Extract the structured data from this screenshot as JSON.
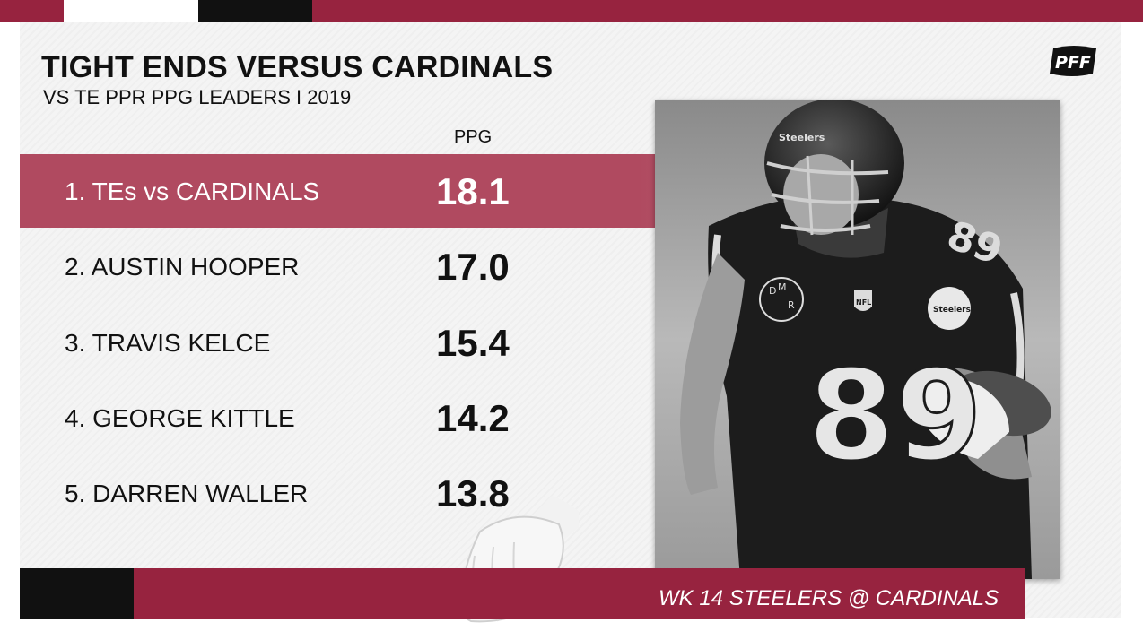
{
  "header": {
    "title": "TIGHT ENDS VERSUS CARDINALS",
    "subtitle": "VS TE PPR PPG LEADERS I 2019",
    "column_label": "PPG"
  },
  "rows": [
    {
      "label": "1. TEs vs CARDINALS",
      "value": "18.1"
    },
    {
      "label": "2. AUSTIN HOOPER",
      "value": "17.0"
    },
    {
      "label": "3. TRAVIS KELCE",
      "value": "15.4"
    },
    {
      "label": "4. GEORGE KITTLE",
      "value": "14.2"
    },
    {
      "label": "5. DARREN WALLER",
      "value": "13.8"
    }
  ],
  "photo": {
    "jersey_number": "89",
    "helmet_text": "Steelers",
    "patch_text": "Steelers",
    "memorial_letters": [
      "D",
      "M",
      "R"
    ],
    "league_text": "NFL"
  },
  "logo": {
    "text": "PFF"
  },
  "caption": "WK 14 STEELERS @ CARDINALS",
  "colors": {
    "brand_red": "#97233f",
    "highlight_red": "#b04a60",
    "black": "#111111",
    "panel": "#f4f4f4"
  }
}
